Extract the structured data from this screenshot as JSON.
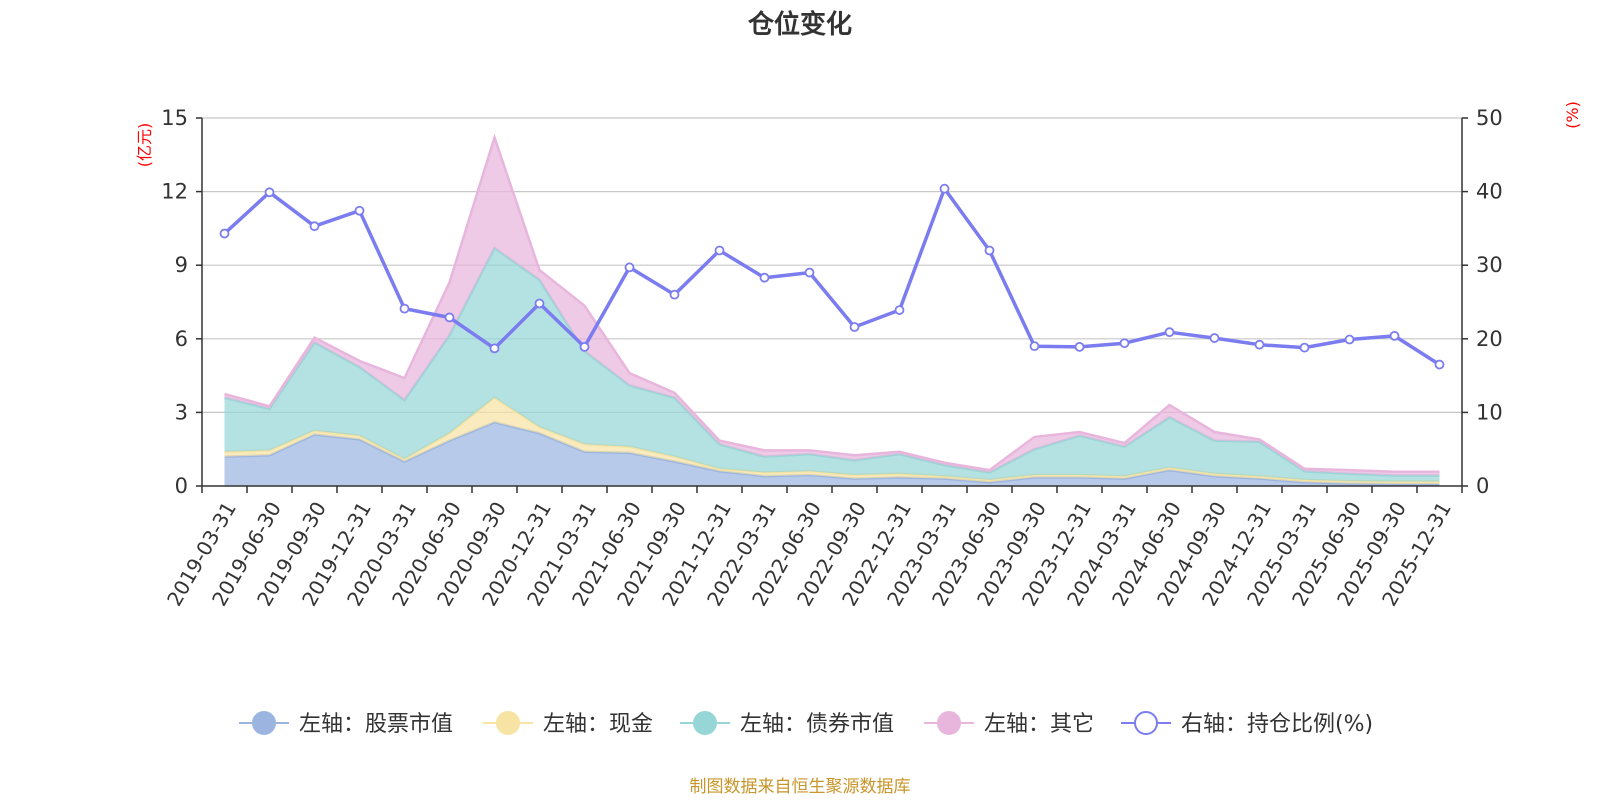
{
  "chart_data": {
    "type": "area",
    "title": "仓位变化",
    "left_unit": "(亿元)",
    "right_unit": "(%)",
    "left_ylim": [
      0,
      15
    ],
    "left_ticks": [
      0,
      3,
      6,
      9,
      12,
      15
    ],
    "right_ylim": [
      0,
      50
    ],
    "right_ticks": [
      0,
      10,
      20,
      30,
      40,
      50
    ],
    "categories": [
      "2019-03-31",
      "2019-06-30",
      "2019-09-30",
      "2019-12-31",
      "2020-03-31",
      "2020-06-30",
      "2020-09-30",
      "2020-12-31",
      "2021-03-31",
      "2021-06-30",
      "2021-09-30",
      "2021-12-31",
      "2022-03-31",
      "2022-06-30",
      "2022-09-30",
      "2022-12-31",
      "2023-03-31",
      "2023-06-30",
      "2023-09-30",
      "2023-12-31",
      "2024-03-31",
      "2024-06-30",
      "2024-09-30",
      "2024-12-31",
      "2025-03-31",
      "2025-06-30",
      "2025-09-30",
      "2025-12-31"
    ],
    "stacked_series": [
      {
        "name": "左轴：股票市值",
        "axis": "left",
        "color": "#9bb5e0",
        "values": [
          1.2,
          1.25,
          2.1,
          1.9,
          1.0,
          1.85,
          2.6,
          2.15,
          1.4,
          1.35,
          1.0,
          0.6,
          0.4,
          0.45,
          0.3,
          0.35,
          0.3,
          0.15,
          0.35,
          0.35,
          0.3,
          0.65,
          0.4,
          0.3,
          0.15,
          0.1,
          0.08,
          0.08
        ]
      },
      {
        "name": "左轴：现金",
        "axis": "left",
        "color": "#f7e3a3",
        "values": [
          0.2,
          0.2,
          0.15,
          0.15,
          0.1,
          0.3,
          1.0,
          0.25,
          0.3,
          0.25,
          0.2,
          0.1,
          0.15,
          0.15,
          0.15,
          0.15,
          0.1,
          0.1,
          0.1,
          0.1,
          0.1,
          0.1,
          0.1,
          0.1,
          0.1,
          0.1,
          0.1,
          0.1
        ]
      },
      {
        "name": "左轴：债券市值",
        "axis": "left",
        "color": "#97d6d6",
        "values": [
          2.2,
          1.7,
          3.6,
          2.8,
          2.4,
          4.0,
          6.1,
          6.0,
          3.8,
          2.5,
          2.4,
          1.0,
          0.65,
          0.7,
          0.6,
          0.8,
          0.45,
          0.3,
          1.05,
          1.6,
          1.2,
          2.05,
          1.35,
          1.4,
          0.35,
          0.3,
          0.25,
          0.25
        ]
      },
      {
        "name": "左轴：其它",
        "axis": "left",
        "color": "#e8b6dc",
        "values": [
          0.15,
          0.1,
          0.2,
          0.25,
          0.9,
          2.15,
          4.5,
          0.4,
          1.85,
          0.5,
          0.2,
          0.15,
          0.25,
          0.15,
          0.2,
          0.1,
          0.1,
          0.1,
          0.5,
          0.15,
          0.15,
          0.5,
          0.35,
          0.1,
          0.1,
          0.15,
          0.15,
          0.15
        ]
      }
    ],
    "line_series": {
      "name": "右轴：持仓比例(%)",
      "axis": "right",
      "color": "#7b7cf0",
      "values": [
        34.3,
        39.9,
        35.3,
        37.4,
        24.1,
        22.9,
        18.7,
        24.8,
        18.9,
        29.7,
        26.0,
        32.0,
        28.3,
        29.0,
        21.6,
        23.9,
        40.4,
        32.0,
        19.0,
        18.9,
        19.4,
        20.9,
        20.1,
        19.2,
        18.8,
        19.9,
        20.4,
        16.5
      ]
    },
    "source": "制图数据来自恒生聚源数据库"
  }
}
